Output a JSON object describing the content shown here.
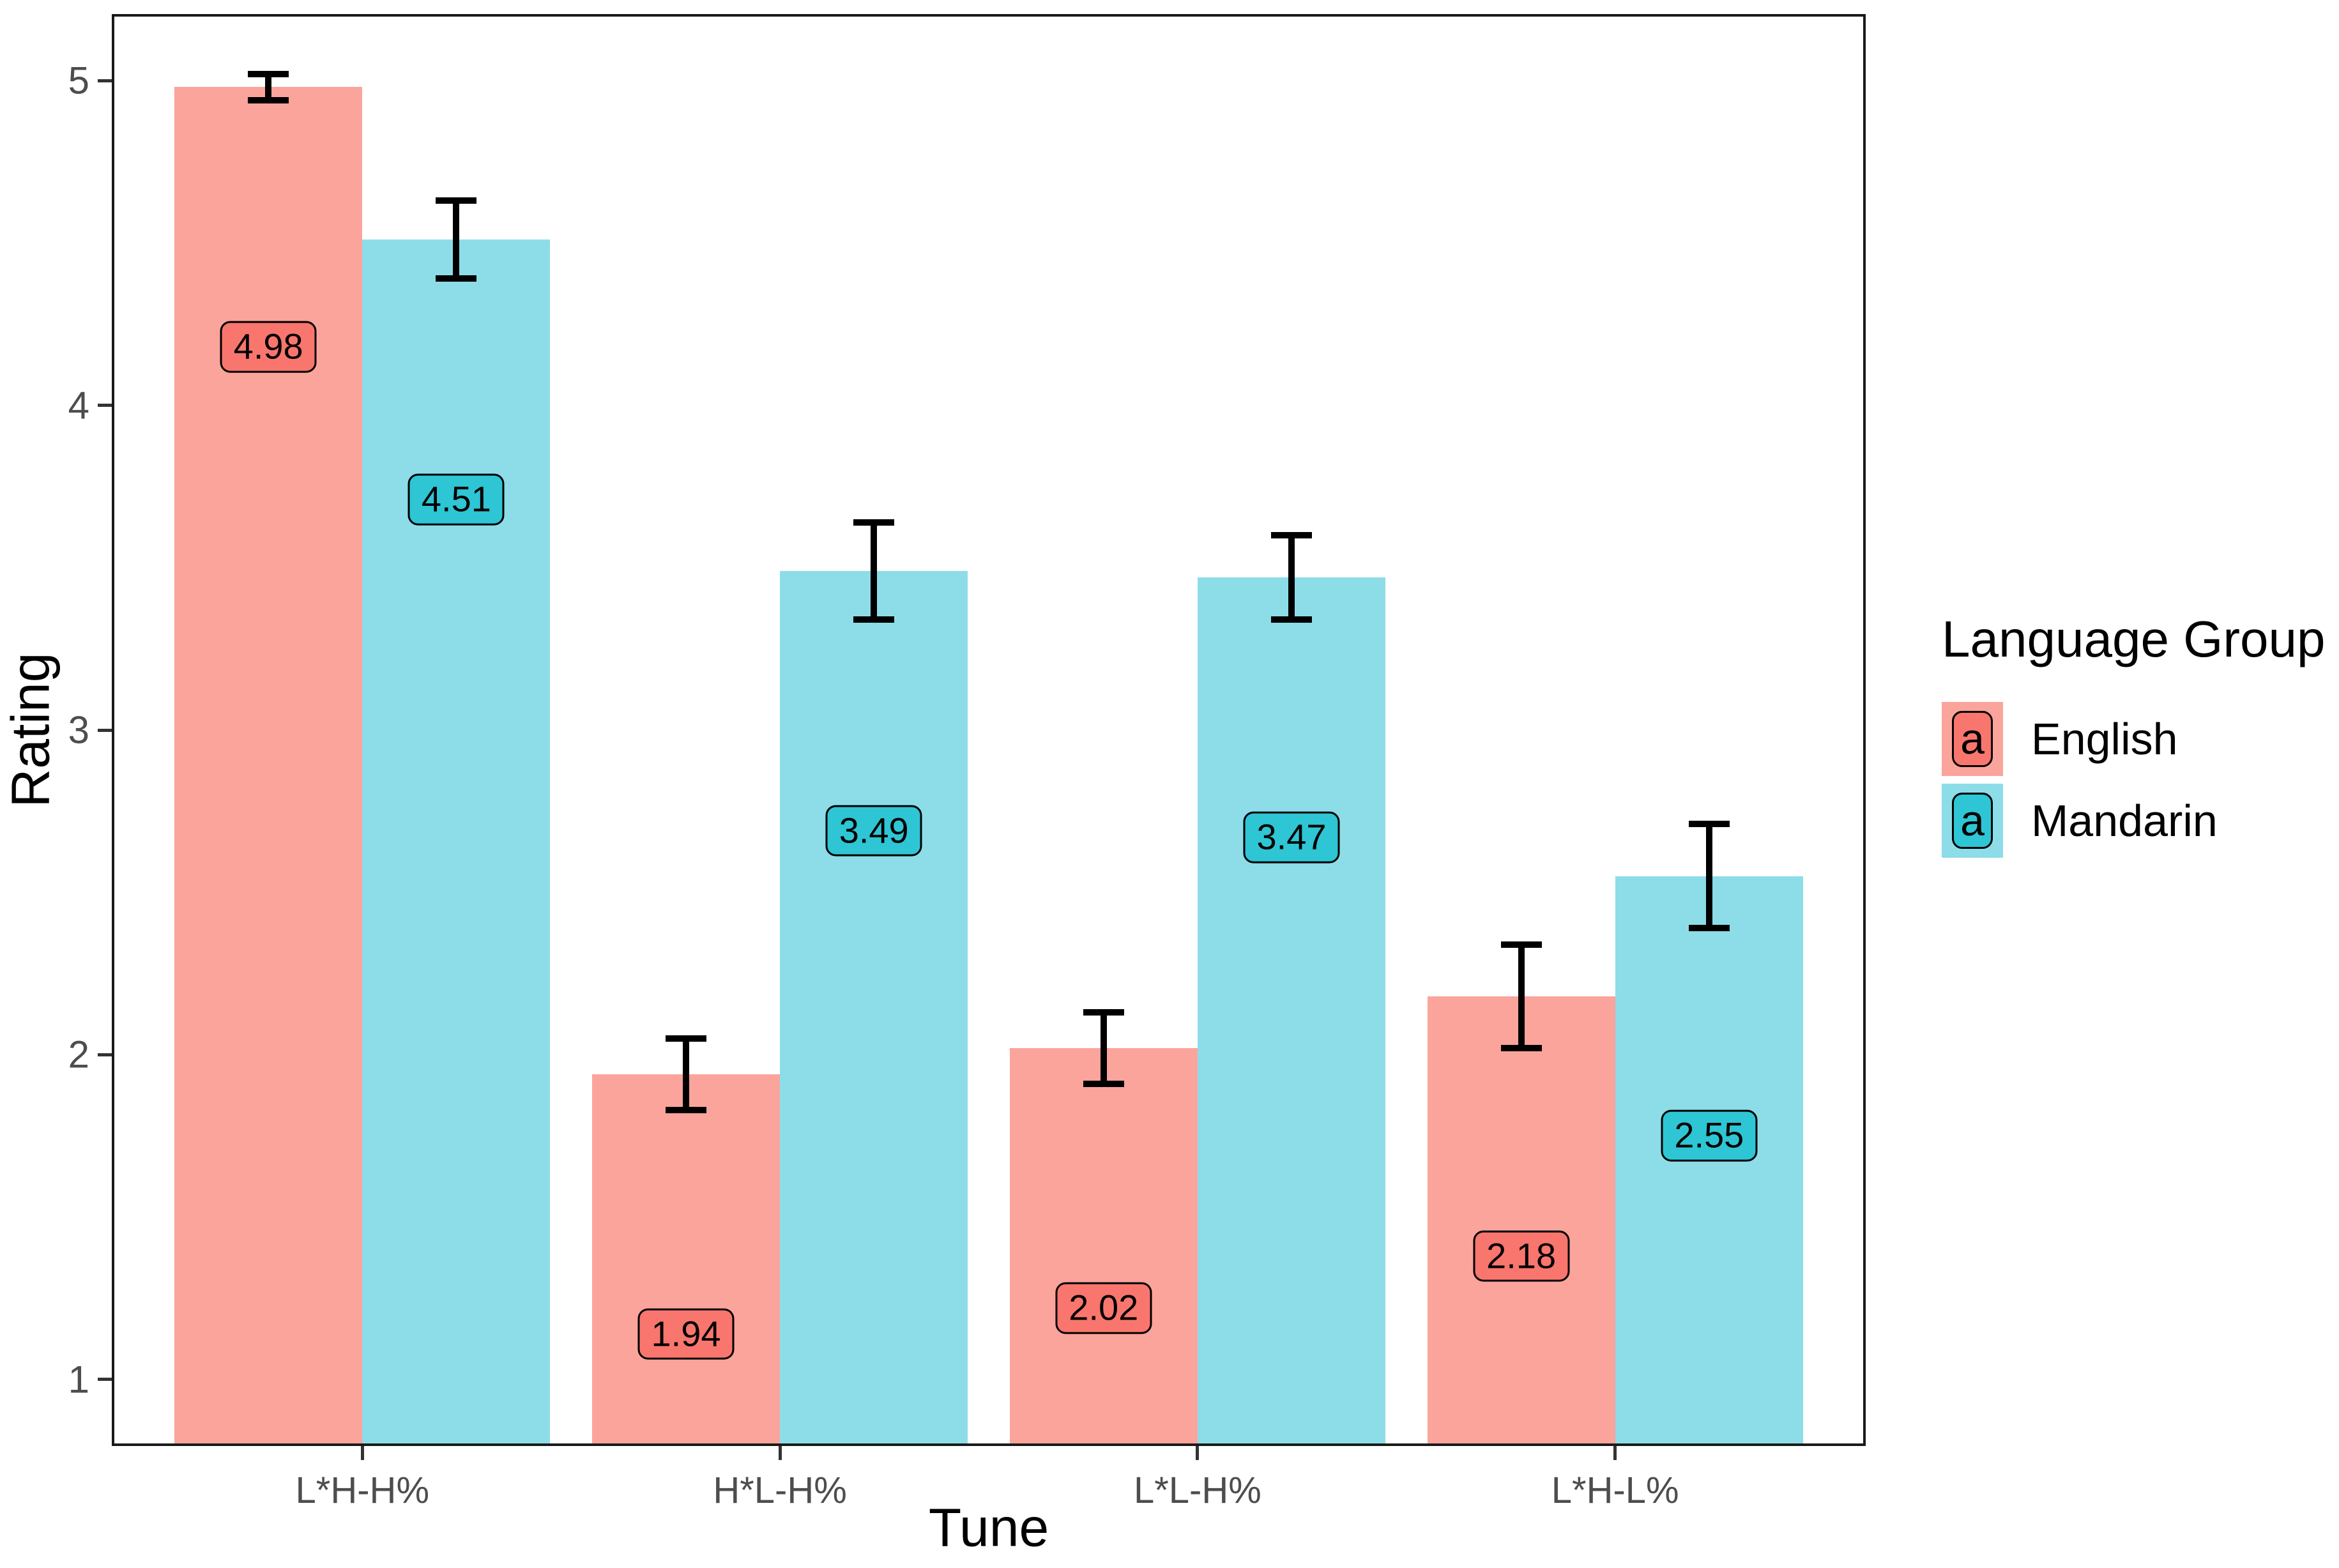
{
  "chart_data": {
    "type": "bar",
    "title": "",
    "xlabel": "Tune",
    "ylabel": "Rating",
    "categories": [
      "L*H-H%",
      "H*L-H%",
      "L*L-H%",
      "L*H-L%"
    ],
    "series": [
      {
        "name": "English",
        "values": [
          4.98,
          1.94,
          2.02,
          2.18
        ],
        "errors": [
          0.04,
          0.11,
          0.11,
          0.16
        ],
        "bar_color": "#FBA49C",
        "label_fill": "#F8766D"
      },
      {
        "name": "Mandarin",
        "values": [
          4.51,
          3.49,
          3.47,
          2.55
        ],
        "errors": [
          0.12,
          0.15,
          0.13,
          0.16
        ],
        "bar_color": "#8DDDE8",
        "label_fill": "#2EC5D4"
      }
    ],
    "yticks": [
      1,
      2,
      3,
      4,
      5
    ],
    "ylim": [
      0.795,
      5.205
    ],
    "value_label_offset": -0.8,
    "bar_mode": "dodge",
    "grid": false,
    "legend_position": "right",
    "legend_title": "Language Group",
    "legend_key_letter": "a",
    "colors": {
      "axis_text": "#4d4d4d",
      "axis_line": "#1a1a1a",
      "label_text": "#000000",
      "errorbar": "#000000",
      "background": "#ffffff"
    }
  }
}
